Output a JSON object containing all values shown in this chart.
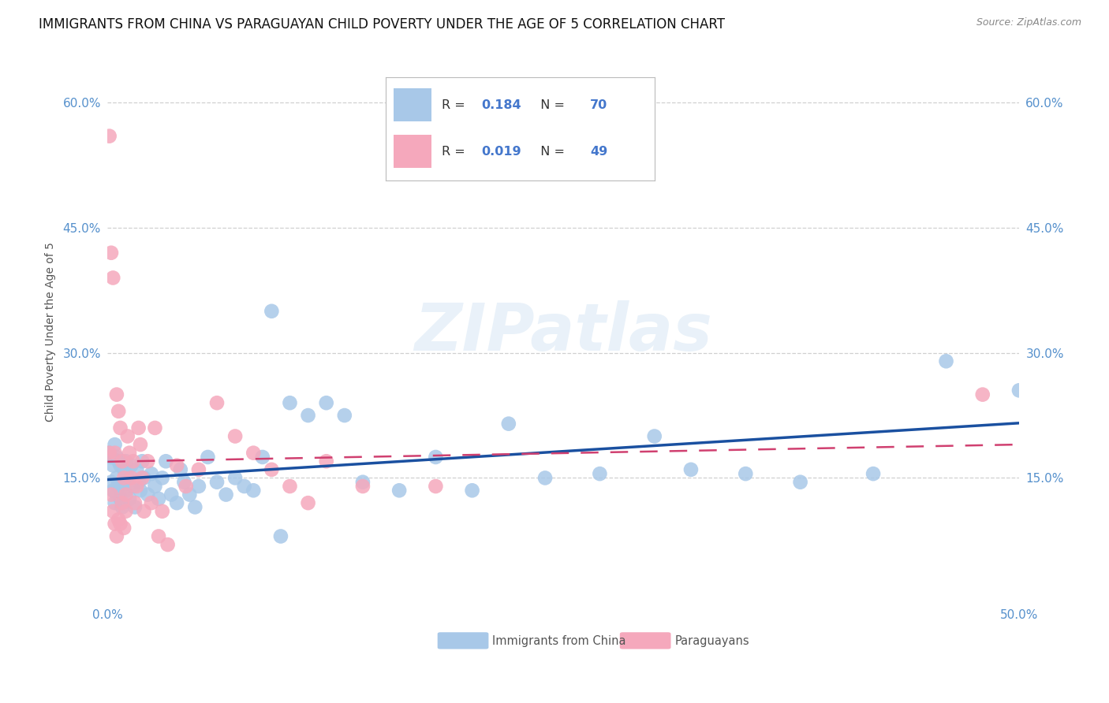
{
  "title": "IMMIGRANTS FROM CHINA VS PARAGUAYAN CHILD POVERTY UNDER THE AGE OF 5 CORRELATION CHART",
  "source": "Source: ZipAtlas.com",
  "ylabel": "Child Poverty Under the Age of 5",
  "xlim": [
    0.0,
    0.5
  ],
  "ylim": [
    0.0,
    0.65
  ],
  "yticks": [
    0.15,
    0.3,
    0.45,
    0.6
  ],
  "ytick_labels": [
    "15.0%",
    "30.0%",
    "45.0%",
    "60.0%"
  ],
  "xtick_positions": [
    0.0,
    0.5
  ],
  "xtick_labels": [
    "0.0%",
    "50.0%"
  ],
  "blue_R": 0.184,
  "blue_N": 70,
  "pink_R": 0.019,
  "pink_N": 49,
  "blue_dot_color": "#a8c8e8",
  "blue_line_color": "#1a50a0",
  "pink_dot_color": "#f5a8bc",
  "pink_line_color": "#d04070",
  "legend_text_color": "#4477cc",
  "blue_scatter_x": [
    0.001,
    0.002,
    0.002,
    0.003,
    0.003,
    0.004,
    0.004,
    0.005,
    0.005,
    0.005,
    0.006,
    0.006,
    0.007,
    0.007,
    0.008,
    0.008,
    0.009,
    0.009,
    0.01,
    0.01,
    0.011,
    0.012,
    0.013,
    0.014,
    0.015,
    0.016,
    0.017,
    0.018,
    0.019,
    0.02,
    0.022,
    0.024,
    0.026,
    0.028,
    0.03,
    0.032,
    0.035,
    0.038,
    0.04,
    0.042,
    0.045,
    0.048,
    0.05,
    0.055,
    0.06,
    0.065,
    0.07,
    0.075,
    0.08,
    0.085,
    0.09,
    0.095,
    0.1,
    0.11,
    0.12,
    0.13,
    0.14,
    0.16,
    0.18,
    0.2,
    0.22,
    0.24,
    0.27,
    0.3,
    0.32,
    0.35,
    0.38,
    0.42,
    0.46,
    0.5
  ],
  "blue_scatter_y": [
    0.18,
    0.145,
    0.175,
    0.135,
    0.165,
    0.12,
    0.19,
    0.15,
    0.13,
    0.175,
    0.14,
    0.17,
    0.125,
    0.165,
    0.14,
    0.115,
    0.16,
    0.145,
    0.135,
    0.17,
    0.15,
    0.125,
    0.165,
    0.14,
    0.115,
    0.16,
    0.145,
    0.135,
    0.17,
    0.15,
    0.13,
    0.155,
    0.14,
    0.125,
    0.15,
    0.17,
    0.13,
    0.12,
    0.16,
    0.145,
    0.13,
    0.115,
    0.14,
    0.175,
    0.145,
    0.13,
    0.15,
    0.14,
    0.135,
    0.175,
    0.35,
    0.08,
    0.24,
    0.225,
    0.24,
    0.225,
    0.145,
    0.135,
    0.175,
    0.135,
    0.215,
    0.15,
    0.155,
    0.2,
    0.16,
    0.155,
    0.145,
    0.155,
    0.29,
    0.255
  ],
  "pink_scatter_x": [
    0.001,
    0.001,
    0.002,
    0.002,
    0.003,
    0.003,
    0.004,
    0.004,
    0.005,
    0.005,
    0.006,
    0.006,
    0.007,
    0.007,
    0.008,
    0.008,
    0.009,
    0.009,
    0.01,
    0.01,
    0.011,
    0.012,
    0.013,
    0.014,
    0.015,
    0.016,
    0.017,
    0.018,
    0.019,
    0.02,
    0.022,
    0.024,
    0.026,
    0.028,
    0.03,
    0.033,
    0.038,
    0.043,
    0.05,
    0.06,
    0.07,
    0.08,
    0.09,
    0.1,
    0.11,
    0.12,
    0.14,
    0.18,
    0.48
  ],
  "pink_scatter_y": [
    0.56,
    0.18,
    0.42,
    0.13,
    0.39,
    0.11,
    0.18,
    0.095,
    0.25,
    0.08,
    0.23,
    0.1,
    0.21,
    0.095,
    0.17,
    0.12,
    0.15,
    0.09,
    0.13,
    0.11,
    0.2,
    0.18,
    0.15,
    0.17,
    0.12,
    0.14,
    0.21,
    0.19,
    0.15,
    0.11,
    0.17,
    0.12,
    0.21,
    0.08,
    0.11,
    0.07,
    0.165,
    0.14,
    0.16,
    0.24,
    0.2,
    0.18,
    0.16,
    0.14,
    0.12,
    0.17,
    0.14,
    0.14,
    0.25
  ],
  "watermark": "ZIPatlas",
  "legend_label_blue": "Immigrants from China",
  "legend_label_pink": "Paraguayans",
  "bg_color": "#ffffff",
  "grid_color": "#d0d0d0",
  "tick_color": "#5590cc",
  "ylabel_color": "#555555",
  "title_color": "#111111",
  "title_fontsize": 12,
  "source_fontsize": 9,
  "tick_fontsize": 11,
  "ylabel_fontsize": 10
}
